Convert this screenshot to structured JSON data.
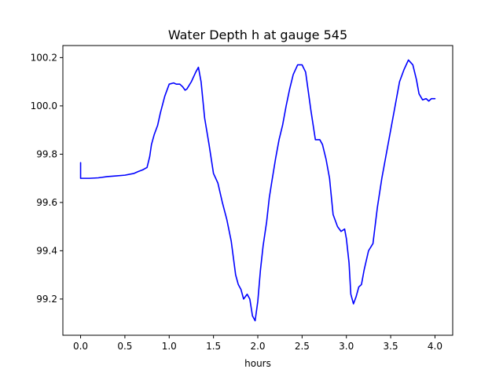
{
  "chart_data": {
    "type": "line",
    "title": "Water Depth h at gauge 545",
    "xlabel": "hours",
    "ylabel": "",
    "xlim": [
      -0.2,
      4.2
    ],
    "ylim": [
      99.05,
      100.25
    ],
    "xticks": [
      0.0,
      0.5,
      1.0,
      1.5,
      2.0,
      2.5,
      3.0,
      3.5,
      4.0
    ],
    "xtick_labels": [
      "0.0",
      "0.5",
      "1.0",
      "1.5",
      "2.0",
      "2.5",
      "3.0",
      "3.5",
      "4.0"
    ],
    "yticks": [
      99.2,
      99.4,
      99.6,
      99.8,
      100.0,
      100.2
    ],
    "ytick_labels": [
      "99.2",
      "99.4",
      "99.6",
      "99.8",
      "100.0",
      "100.2"
    ],
    "grid": false,
    "legend": "none",
    "series": [
      {
        "color": "#0000ff",
        "x": [
          0.0,
          0.0,
          0.1,
          0.2,
          0.3,
          0.4,
          0.5,
          0.6,
          0.65,
          0.7,
          0.75,
          0.78,
          0.8,
          0.83,
          0.87,
          0.9,
          0.95,
          1.0,
          1.05,
          1.08,
          1.12,
          1.15,
          1.18,
          1.2,
          1.25,
          1.3,
          1.33,
          1.36,
          1.4,
          1.45,
          1.5,
          1.55,
          1.6,
          1.65,
          1.7,
          1.75,
          1.78,
          1.81,
          1.84,
          1.88,
          1.91,
          1.94,
          1.97,
          2.0,
          2.03,
          2.06,
          2.1,
          2.13,
          2.16,
          2.2,
          2.24,
          2.28,
          2.32,
          2.36,
          2.4,
          2.45,
          2.5,
          2.54,
          2.57,
          2.6,
          2.65,
          2.7,
          2.73,
          2.77,
          2.81,
          2.85,
          2.9,
          2.94,
          2.98,
          3.0,
          3.03,
          3.05,
          3.08,
          3.11,
          3.14,
          3.17,
          3.2,
          3.25,
          3.3,
          3.35,
          3.4,
          3.45,
          3.5,
          3.55,
          3.6,
          3.65,
          3.7,
          3.75,
          3.79,
          3.82,
          3.86,
          3.9,
          3.93,
          3.96,
          4.0
        ],
        "y": [
          99.765,
          99.7,
          99.7,
          99.702,
          99.707,
          99.71,
          99.713,
          99.72,
          99.728,
          99.735,
          99.745,
          99.79,
          99.84,
          99.88,
          99.92,
          99.97,
          100.04,
          100.09,
          100.095,
          100.09,
          100.09,
          100.08,
          100.065,
          100.07,
          100.1,
          100.14,
          100.16,
          100.1,
          99.95,
          99.84,
          99.72,
          99.68,
          99.6,
          99.53,
          99.44,
          99.3,
          99.26,
          99.24,
          99.2,
          99.22,
          99.2,
          99.13,
          99.11,
          99.19,
          99.32,
          99.42,
          99.52,
          99.62,
          99.69,
          99.78,
          99.86,
          99.92,
          100.0,
          100.07,
          100.13,
          100.17,
          100.17,
          100.14,
          100.06,
          99.98,
          99.86,
          99.86,
          99.84,
          99.78,
          99.7,
          99.55,
          99.5,
          99.48,
          99.49,
          99.45,
          99.35,
          99.22,
          99.18,
          99.21,
          99.25,
          99.26,
          99.32,
          99.4,
          99.43,
          99.58,
          99.7,
          99.8,
          99.9,
          100.0,
          100.1,
          100.15,
          100.19,
          100.17,
          100.11,
          100.05,
          100.025,
          100.03,
          100.02,
          100.03,
          100.03
        ]
      }
    ]
  }
}
